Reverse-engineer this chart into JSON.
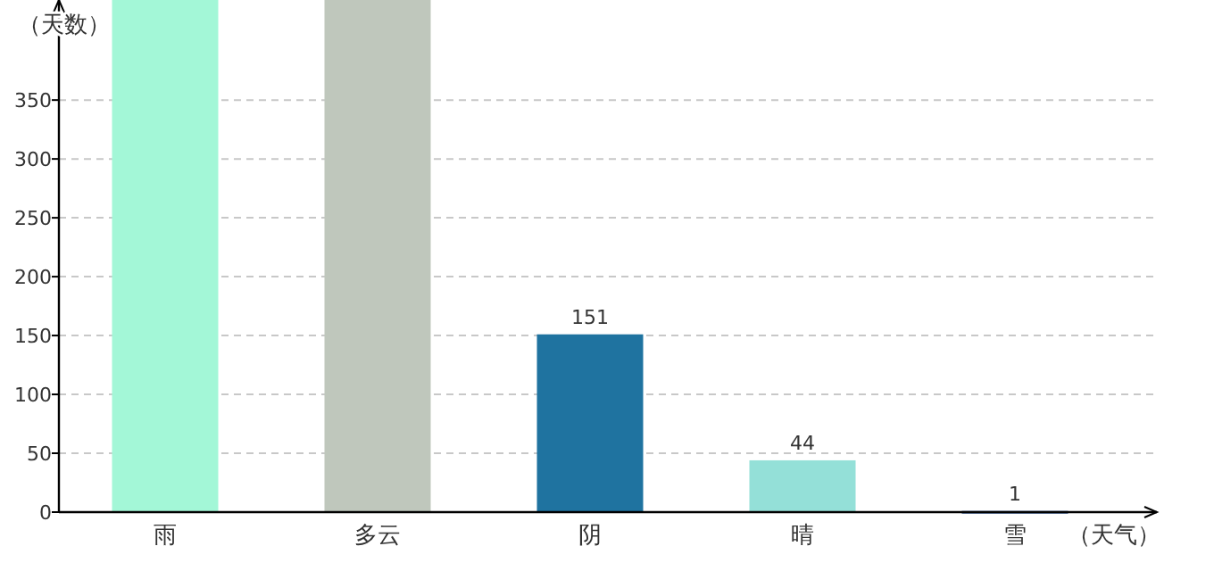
{
  "chart_data": {
    "type": "bar",
    "xlabel": "（天气）",
    "ylabel": "（天数）",
    "categories": [
      "雨",
      "多云",
      "阴",
      "晴",
      "雪"
    ],
    "values": [
      435,
      435,
      151,
      44,
      1
    ],
    "colors": [
      "#a3f7d7",
      "#bfc7bc",
      "#1f73a0",
      "#94e0d8",
      "#2b4f8f"
    ],
    "value_labels": [
      null,
      null,
      "151",
      "44",
      "1"
    ],
    "ylim": [
      0,
      435
    ],
    "yticks": [
      0,
      50,
      100,
      150,
      200,
      250,
      300,
      350
    ],
    "grid": "y"
  }
}
